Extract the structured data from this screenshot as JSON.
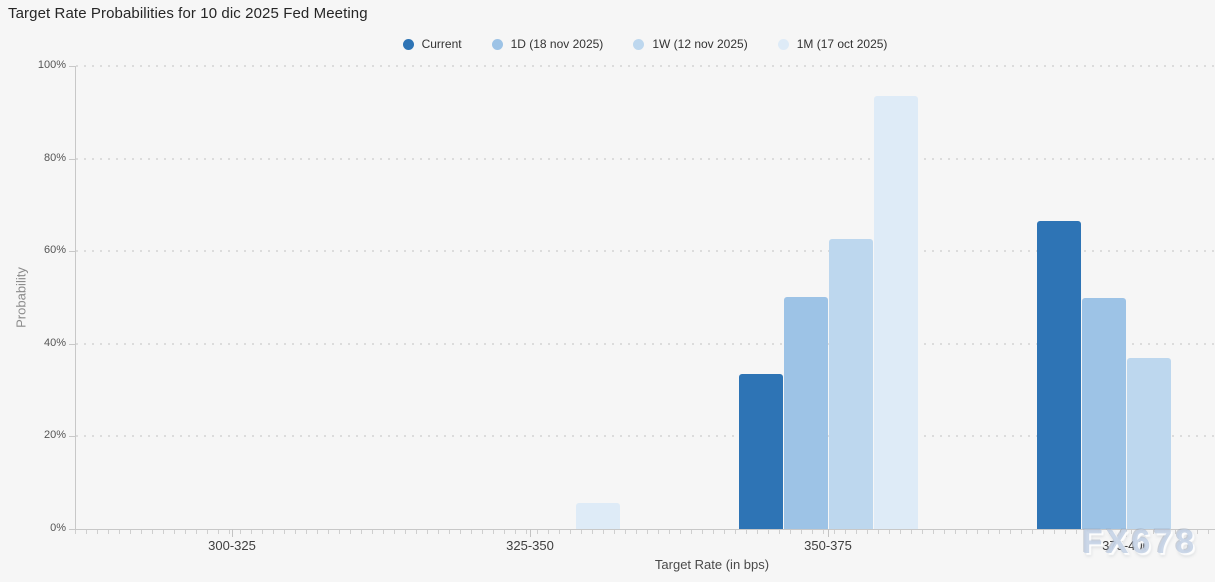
{
  "title": "Target Rate Probabilities for 10 dic 2025 Fed Meeting",
  "watermark": "FX678",
  "colors": {
    "background": "#f6f6f6",
    "gridline": "#dcdcdc",
    "axis_line": "#c8c8c8",
    "title_text": "#262626",
    "tick_text": "#555555"
  },
  "chart_data": {
    "type": "bar",
    "title": "Target Rate Probabilities for 10 dic 2025 Fed Meeting",
    "xlabel": "Target Rate (in bps)",
    "ylabel": "Probability",
    "categories": [
      "300-325",
      "325-350",
      "350-375",
      "375-400"
    ],
    "series": [
      {
        "name": "Current",
        "color": "#2e74b5",
        "values": [
          0,
          0,
          33.4,
          66.6
        ]
      },
      {
        "name": "1D (18 nov 2025)",
        "color": "#9dc3e6",
        "values": [
          0,
          0,
          50.0,
          49.8
        ]
      },
      {
        "name": "1W (12 nov 2025)",
        "color": "#bdd7ee",
        "values": [
          0,
          0,
          62.7,
          37.0
        ]
      },
      {
        "name": "1M (17 oct 2025)",
        "color": "#deebf7",
        "values": [
          0,
          5.6,
          93.5,
          0
        ]
      }
    ],
    "ylim": [
      0,
      100
    ],
    "yticks": [
      "0%",
      "20%",
      "40%",
      "60%",
      "80%",
      "100%"
    ],
    "grid": "horizontal dotted",
    "legend_position": "top-center"
  }
}
